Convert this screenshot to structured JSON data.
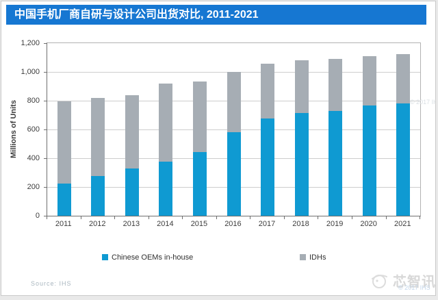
{
  "title_bar": {
    "text": "中国手机厂商自研与设计公司出货对比, 2011-2021",
    "background": "#1677d2",
    "text_color": "#ffffff"
  },
  "chart_data": {
    "type": "bar",
    "stacked": true,
    "title": "中国手机厂商自研与设计公司出货对比, 2011-2021",
    "categories": [
      "2011",
      "2012",
      "2013",
      "2014",
      "2015",
      "2016",
      "2017",
      "2018",
      "2019",
      "2020",
      "2021"
    ],
    "series": [
      {
        "name": "Chinese OEMs in-house",
        "color": "#0f9ad2",
        "values": [
          225,
          275,
          330,
          375,
          445,
          580,
          675,
          715,
          730,
          765,
          780
        ]
      },
      {
        "name": "IDHs",
        "color": "#a6adb4",
        "values": [
          570,
          545,
          510,
          545,
          490,
          420,
          380,
          365,
          360,
          345,
          345
        ]
      }
    ],
    "xlabel": "",
    "ylabel": "Millions of Units",
    "ylim": [
      0,
      1200
    ],
    "ytick_step": 200,
    "ytick_labels": [
      "0",
      "200",
      "400",
      "600",
      "800",
      "1,000",
      "1,200"
    ],
    "grid": true,
    "legend_position": "bottom"
  },
  "footer": {
    "source": "Source: IHS"
  },
  "watermarks": {
    "plot_copyright": "© 2017 IHS",
    "brand_name": "芯智讯",
    "brand_copyright": "© 2017 IHS"
  }
}
